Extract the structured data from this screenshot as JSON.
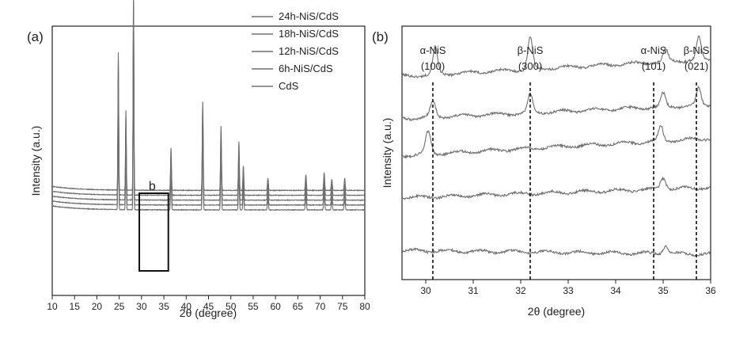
{
  "chart_data": [
    {
      "type": "line",
      "panel_label": "(a)",
      "xlabel": "2θ (degree)",
      "ylabel": "Intensity (a.u.)",
      "xlim": [
        10,
        80
      ],
      "xticks": [
        "10",
        "15",
        "20",
        "25",
        "30",
        "35",
        "40",
        "45",
        "50",
        "55",
        "60",
        "65",
        "70",
        "75",
        "80"
      ],
      "legend_position": "top-right",
      "legend": [
        "24h-NiS/CdS",
        "18h-NiS/CdS",
        "12h-NiS/CdS",
        "6h-NiS/CdS",
        "CdS"
      ],
      "inset_box": {
        "label": "b",
        "x": [
          29.5,
          36
        ]
      },
      "baseline": 0.18,
      "noise": 0.012,
      "series_offsets": [
        0.88,
        0.66,
        0.44,
        0.22,
        0.0
      ],
      "peaks": [
        {
          "x": 24.8,
          "h": 6.2,
          "w": 0.12
        },
        {
          "x": 26.5,
          "h": 3.6,
          "w": 0.12
        },
        {
          "x": 28.2,
          "h": 9.0,
          "w": 0.12
        },
        {
          "x": 36.6,
          "h": 1.9,
          "w": 0.14
        },
        {
          "x": 43.7,
          "h": 4.0,
          "w": 0.14
        },
        {
          "x": 47.8,
          "h": 2.9,
          "w": 0.14
        },
        {
          "x": 51.8,
          "h": 2.2,
          "w": 0.14
        },
        {
          "x": 52.8,
          "h": 1.1,
          "w": 0.14
        },
        {
          "x": 58.3,
          "h": 0.55,
          "w": 0.16
        },
        {
          "x": 66.8,
          "h": 0.7,
          "w": 0.16
        },
        {
          "x": 70.9,
          "h": 0.8,
          "w": 0.16
        },
        {
          "x": 72.6,
          "h": 0.5,
          "w": 0.16
        },
        {
          "x": 75.5,
          "h": 0.55,
          "w": 0.16
        }
      ]
    },
    {
      "type": "line",
      "panel_label": "(b)",
      "xlabel": "2θ (degree)",
      "ylabel": "Intensity (a.u.)",
      "xlim": [
        29.5,
        36
      ],
      "xticks": [
        "30",
        "31",
        "32",
        "33",
        "34",
        "35",
        "36"
      ],
      "series_order": [
        "24h-NiS/CdS",
        "18h-NiS/CdS",
        "12h-NiS/CdS",
        "6h-NiS/CdS",
        "CdS"
      ],
      "noise": 0.022,
      "series": [
        {
          "offset": 3.85,
          "slope": 0.05,
          "peaks": [
            {
              "x": 30.2,
              "h": 0.5,
              "w": 0.07
            },
            {
              "x": 32.2,
              "h": 0.6,
              "w": 0.07
            },
            {
              "x": 35.05,
              "h": 0.22,
              "w": 0.07
            },
            {
              "x": 35.75,
              "h": 0.42,
              "w": 0.07
            }
          ]
        },
        {
          "offset": 3.05,
          "slope": 0.04,
          "peaks": [
            {
              "x": 30.15,
              "h": 0.28,
              "w": 0.08
            },
            {
              "x": 32.2,
              "h": 0.35,
              "w": 0.07
            },
            {
              "x": 35.0,
              "h": 0.25,
              "w": 0.07
            },
            {
              "x": 35.75,
              "h": 0.32,
              "w": 0.07
            }
          ]
        },
        {
          "offset": 2.35,
          "slope": 0.05,
          "peaks": [
            {
              "x": 30.05,
              "h": 0.42,
              "w": 0.08
            },
            {
              "x": 34.95,
              "h": 0.28,
              "w": 0.07
            }
          ]
        },
        {
          "offset": 1.55,
          "slope": 0.03,
          "peaks": [
            {
              "x": 35.0,
              "h": 0.22,
              "w": 0.08
            }
          ]
        },
        {
          "offset": 0.55,
          "slope": -0.01,
          "peaks": [
            {
              "x": 35.05,
              "h": 0.15,
              "w": 0.08
            }
          ]
        }
      ],
      "ylim": [
        0,
        4.8
      ],
      "reference_lines": [
        {
          "x": 30.15,
          "label": "α-NiS",
          "index": "(100)"
        },
        {
          "x": 32.2,
          "label": "β-NiS",
          "index": "(300)"
        },
        {
          "x": 34.8,
          "label": "α-NiS",
          "index": "(101)"
        },
        {
          "x": 35.7,
          "label": "β-NiS",
          "index": "(021)"
        }
      ]
    }
  ]
}
